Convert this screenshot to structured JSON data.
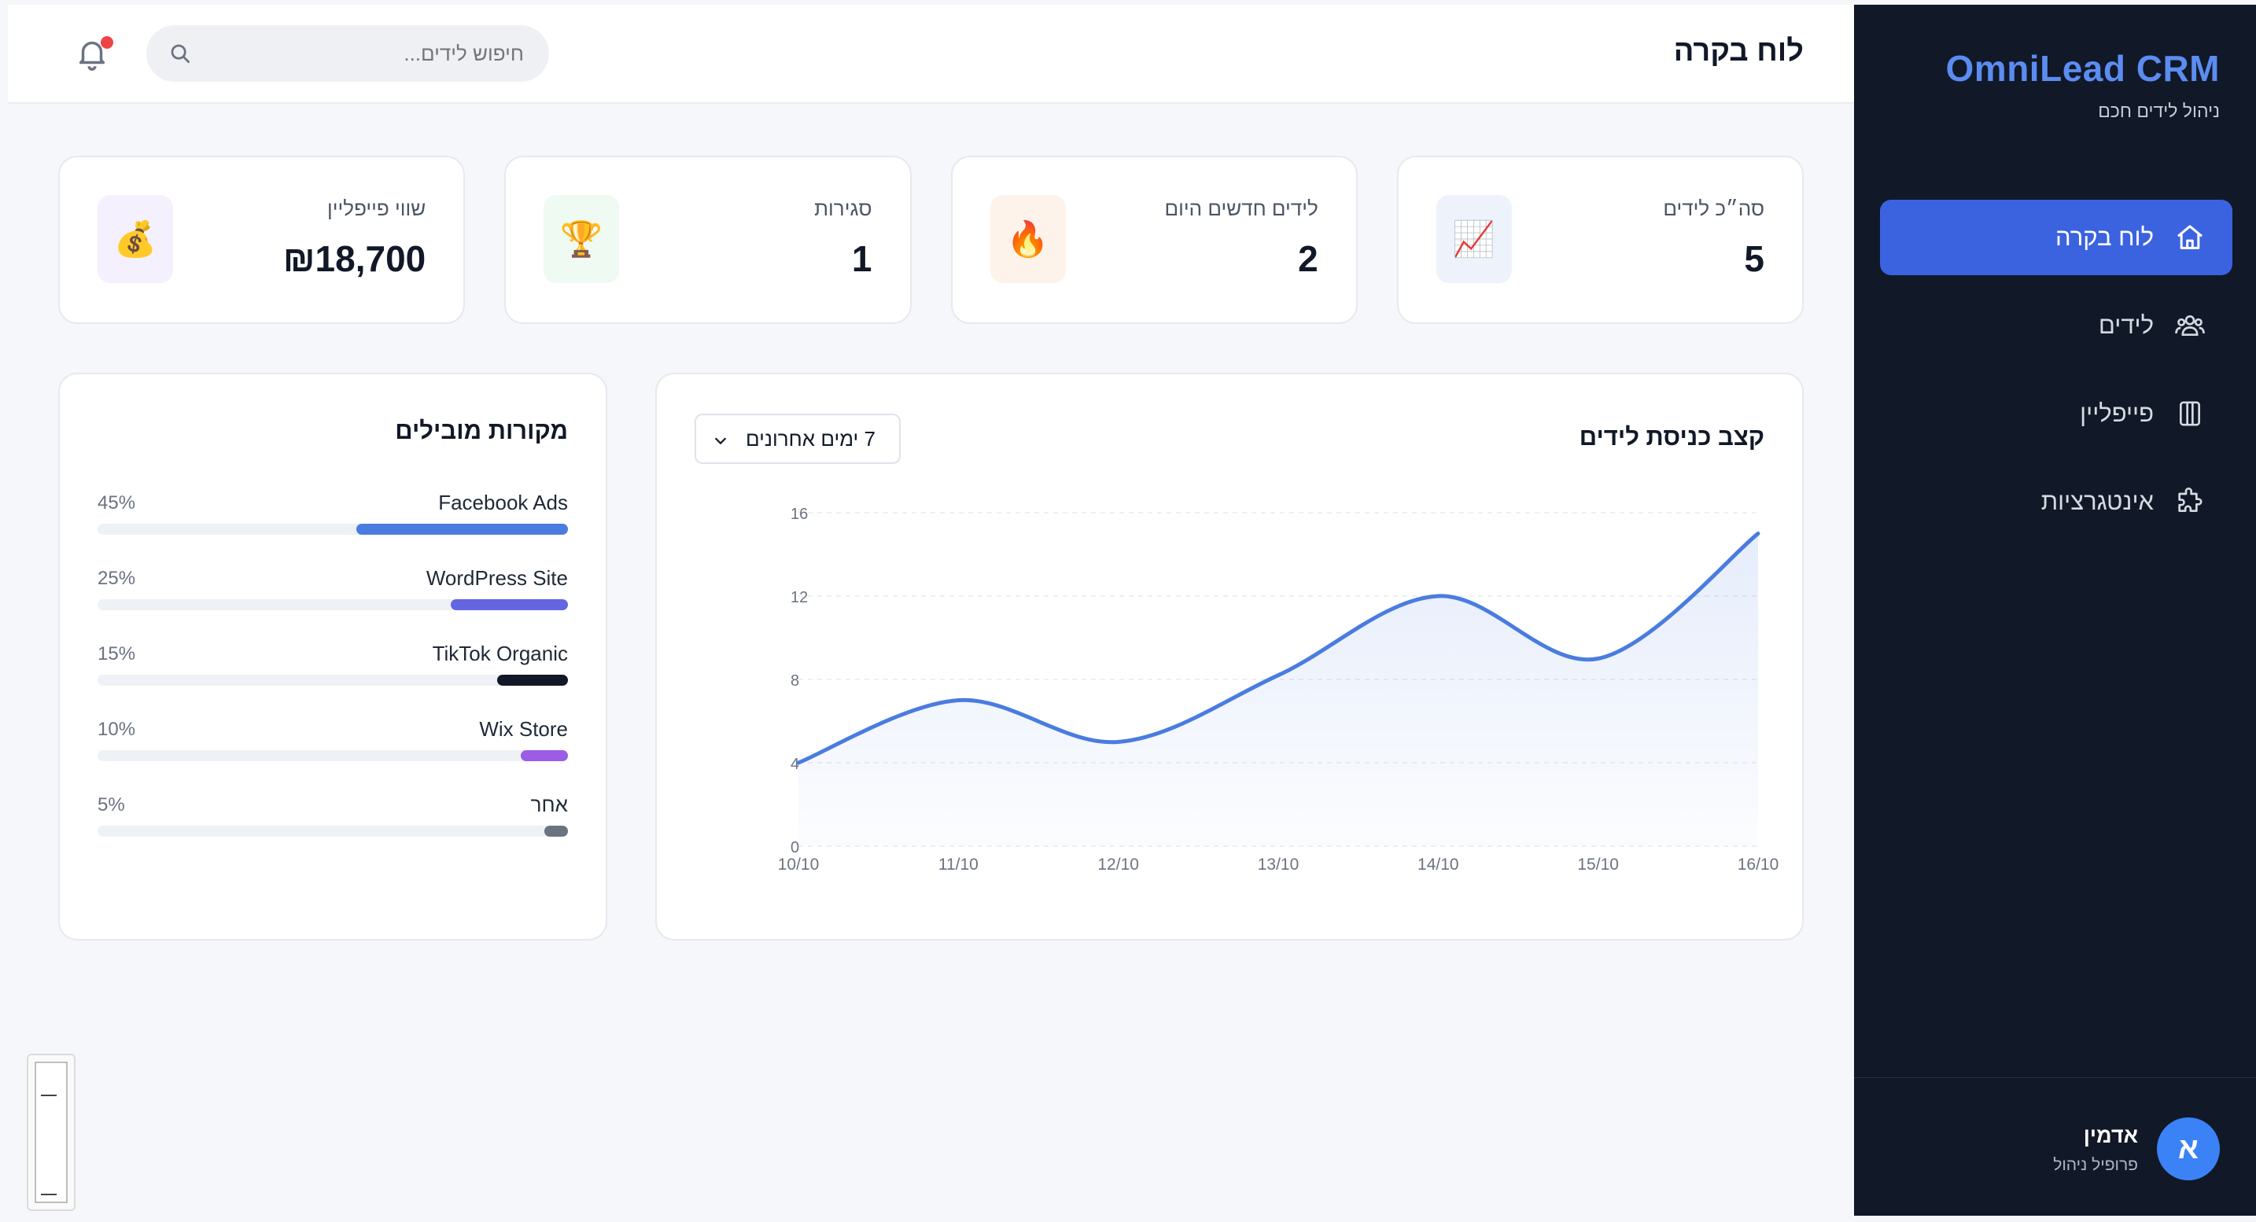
{
  "sidebar": {
    "brand_name": "OmniLead CRM",
    "brand_subtitle": "ניהול לידים חכם",
    "items": [
      {
        "label": "לוח בקרה",
        "icon": "home-icon",
        "active": true
      },
      {
        "label": "לידים",
        "icon": "users-icon",
        "active": false
      },
      {
        "label": "פייפליין",
        "icon": "pipeline-icon",
        "active": false
      },
      {
        "label": "אינטגרציות",
        "icon": "puzzle-icon",
        "active": false
      }
    ],
    "user": {
      "initial": "א",
      "name": "אדמין",
      "role": "פרופיל ניהול"
    }
  },
  "header": {
    "title": "לוח בקרה",
    "search_placeholder": "חיפוש לידים...",
    "notifications_unread": true
  },
  "stats": [
    {
      "label": "סה״כ לידים",
      "value": "5",
      "icon": "chart-up-icon",
      "emoji": "📈"
    },
    {
      "label": "לידים חדשים היום",
      "value": "2",
      "icon": "fire-icon",
      "emoji": "🔥"
    },
    {
      "label": "סגירות",
      "value": "1",
      "icon": "trophy-icon",
      "emoji": "🏆"
    },
    {
      "label": "שווי פייפליין",
      "value": "₪18,700",
      "icon": "money-bag-icon",
      "emoji": "💰"
    }
  ],
  "chart_panel": {
    "title": "קצב כניסת לידים",
    "range_label": "7 ימים אחרונים"
  },
  "chart_data": {
    "type": "area",
    "title": "קצב כניסת לידים",
    "x": [
      "10/10",
      "11/10",
      "12/10",
      "13/10",
      "14/10",
      "15/10",
      "16/10"
    ],
    "y_ticks": [
      0,
      4,
      8,
      12,
      16
    ],
    "series": [
      {
        "values": [
          4,
          7,
          5,
          8.2,
          12,
          9,
          15
        ]
      }
    ],
    "ylim": [
      0,
      16
    ],
    "grid": true,
    "color": "#4a7ce0"
  },
  "sources": {
    "title": "מקורות מובילים",
    "items": [
      {
        "name": "Facebook Ads",
        "percent": 45,
        "percent_label": "45%",
        "color": "#4a7ce0"
      },
      {
        "name": "WordPress Site",
        "percent": 25,
        "percent_label": "25%",
        "color": "#6366e0"
      },
      {
        "name": "TikTok Organic",
        "percent": 15,
        "percent_label": "15%",
        "color": "#111827"
      },
      {
        "name": "Wix Store",
        "percent": 10,
        "percent_label": "10%",
        "color": "#9b5de5"
      },
      {
        "name": "אחר",
        "percent": 5,
        "percent_label": "5%",
        "color": "#6b7280"
      }
    ]
  }
}
